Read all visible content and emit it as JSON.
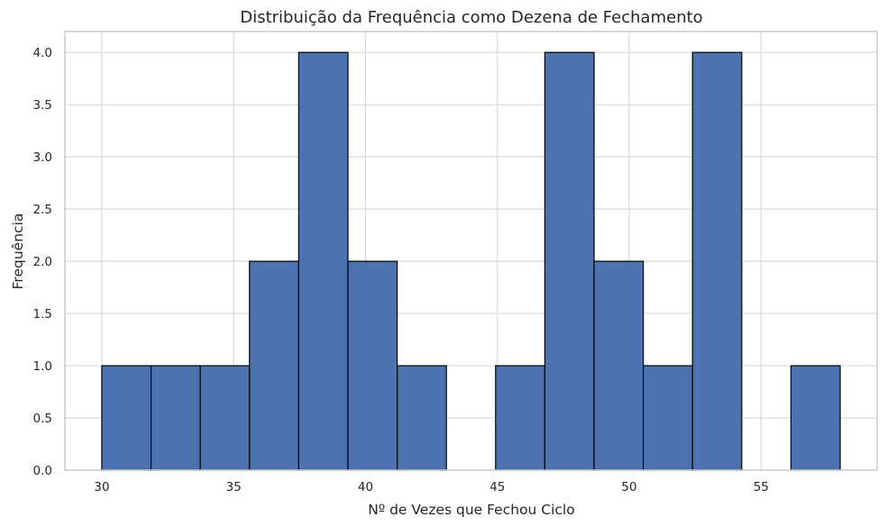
{
  "chart_data": {
    "type": "bar",
    "subtype": "histogram",
    "title": "Distribuição da Frequência como Dezena de Fechamento",
    "xlabel": "Nº de Vezes que Fechou Ciclo",
    "ylabel": "Frequência",
    "bins": [
      {
        "start": 30.0,
        "end": 31.867,
        "count": 1
      },
      {
        "start": 31.867,
        "end": 33.733,
        "count": 1
      },
      {
        "start": 33.733,
        "end": 35.6,
        "count": 1
      },
      {
        "start": 35.6,
        "end": 37.467,
        "count": 2
      },
      {
        "start": 37.467,
        "end": 39.333,
        "count": 4
      },
      {
        "start": 39.333,
        "end": 41.2,
        "count": 2
      },
      {
        "start": 41.2,
        "end": 43.067,
        "count": 1
      },
      {
        "start": 43.067,
        "end": 44.933,
        "count": 0
      },
      {
        "start": 44.933,
        "end": 46.8,
        "count": 1
      },
      {
        "start": 46.8,
        "end": 48.667,
        "count": 4
      },
      {
        "start": 48.667,
        "end": 50.533,
        "count": 2
      },
      {
        "start": 50.533,
        "end": 52.4,
        "count": 1
      },
      {
        "start": 52.4,
        "end": 54.267,
        "count": 4
      },
      {
        "start": 54.267,
        "end": 56.133,
        "count": 0
      },
      {
        "start": 56.133,
        "end": 58.0,
        "count": 1
      }
    ],
    "xlim": [
      28.6,
      59.4
    ],
    "ylim": [
      0,
      4.2
    ],
    "xticks": [
      30,
      35,
      40,
      45,
      50,
      55
    ],
    "yticks": [
      0.0,
      0.5,
      1.0,
      1.5,
      2.0,
      2.5,
      3.0,
      3.5,
      4.0
    ],
    "grid": true,
    "bar_color": "#4c72b0",
    "edge_color": "#000000"
  }
}
